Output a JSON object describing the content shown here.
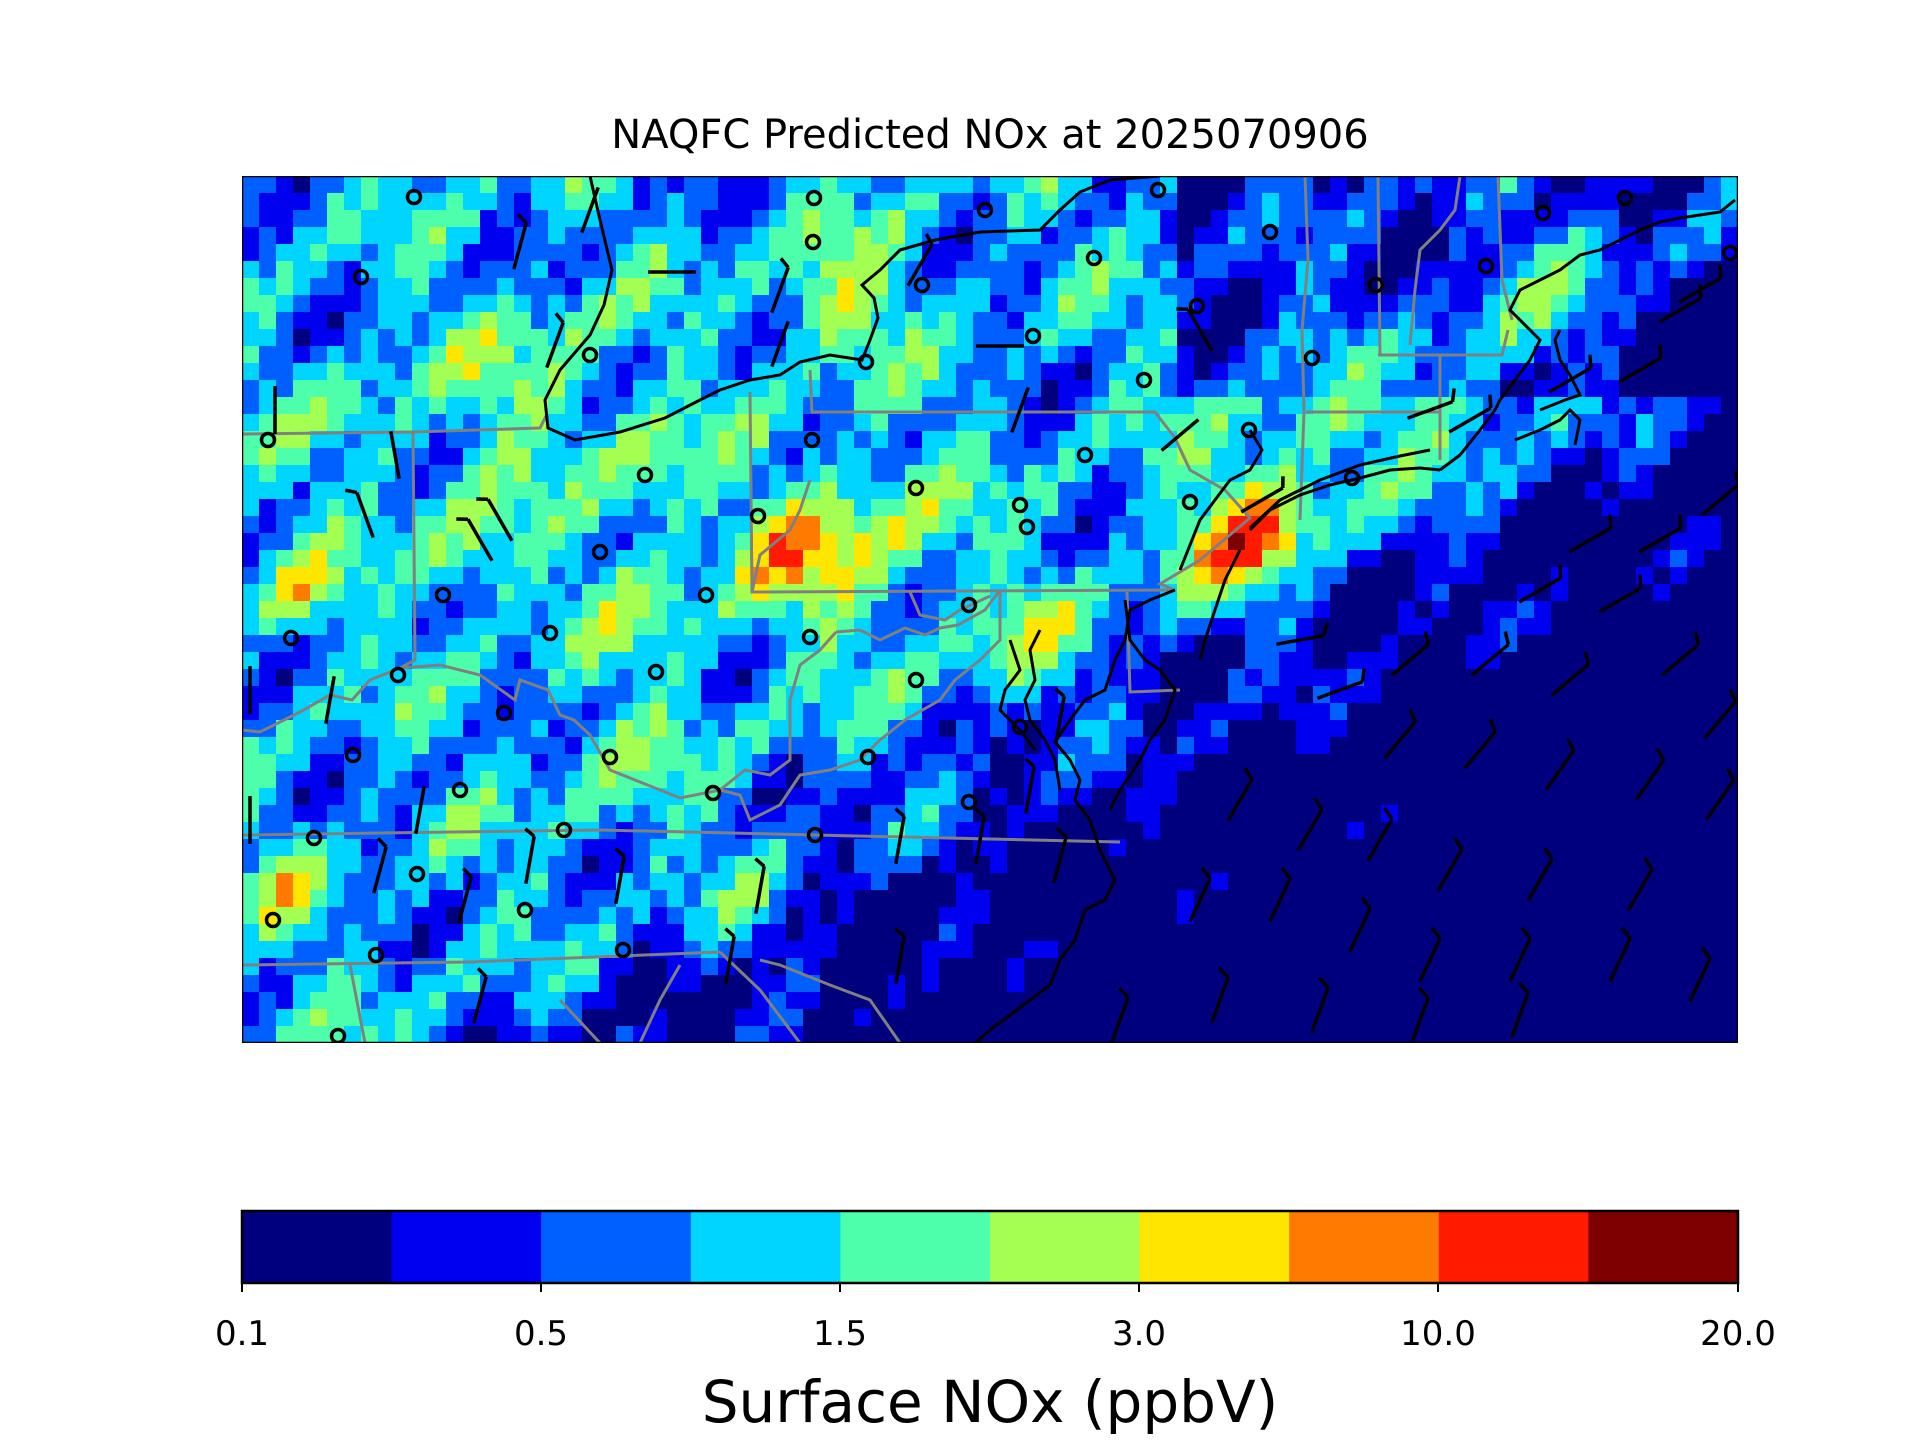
{
  "figure": {
    "title": "NAQFC Predicted NOx at 2025070906"
  },
  "colorbar": {
    "label": "Surface NOx (ppbV)",
    "tick_labels": [
      "0.1",
      "0.5",
      "1.5",
      "3.0",
      "10.0",
      "20.0"
    ],
    "colors": [
      "#00007f",
      "#0000f1",
      "#0060ff",
      "#00d5ff",
      "#4dffaa",
      "#a4ff53",
      "#ffe600",
      "#ff7a00",
      "#ff1a00",
      "#7f0000"
    ]
  },
  "map": {
    "region": "Mid-Atlantic / Northeast US",
    "state_border_color": "#808080",
    "coastline_color": "#000000",
    "site_marker": "open-circle",
    "wind_symbol": "wind-barb"
  }
}
